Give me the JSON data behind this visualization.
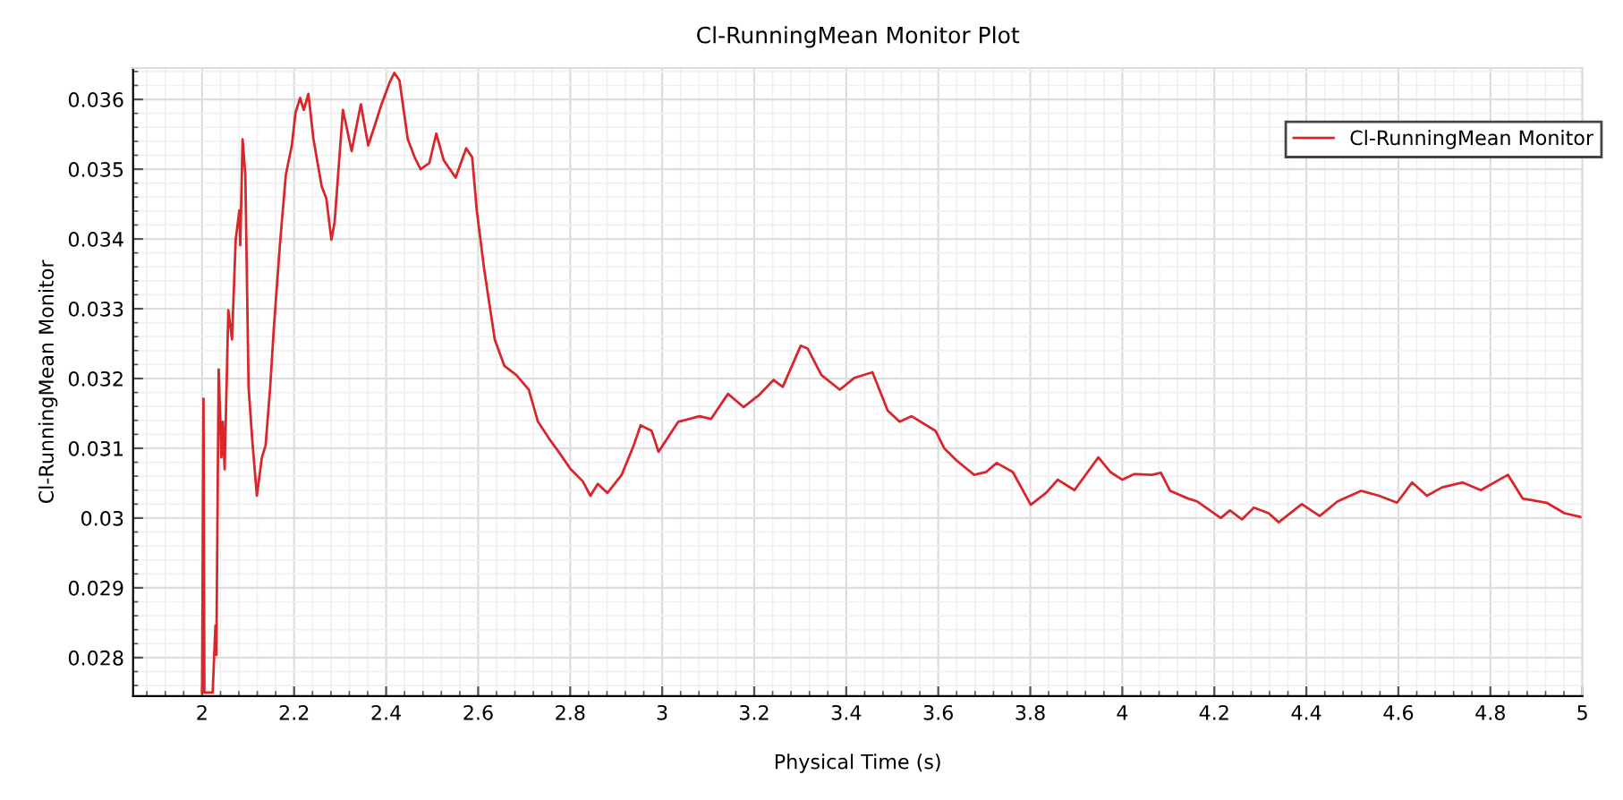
{
  "chart_data": {
    "type": "line",
    "title": "Cl-RunningMean Monitor Plot",
    "xlabel": "Physical Time (s)",
    "ylabel": "Cl-RunningMean Monitor",
    "xlim": [
      1.85,
      5
    ],
    "ylim": [
      0.02745,
      0.03645
    ],
    "xticks": [
      2,
      2.2,
      2.4,
      2.6,
      2.8,
      3,
      3.2,
      3.4,
      3.6,
      3.8,
      4,
      4.2,
      4.4,
      4.6,
      4.8,
      5
    ],
    "yticks": [
      0.028,
      0.029,
      0.03,
      0.031,
      0.032,
      0.033,
      0.034,
      0.035,
      0.036
    ],
    "grid": true,
    "legend": "top right",
    "marker": "none",
    "line_style": "solid",
    "series": [
      {
        "name": "Cl-RunningMean Monitor",
        "color": "#d9262b",
        "x": [
          2.0,
          2.003,
          2.005,
          2.023,
          2.029,
          2.031,
          2.036,
          2.042,
          2.045,
          2.049,
          2.057,
          2.065,
          2.073,
          2.081,
          2.083,
          2.088,
          2.094,
          2.101,
          2.109,
          2.119,
          2.13,
          2.138,
          2.148,
          2.156,
          2.169,
          2.182,
          2.195,
          2.203,
          2.213,
          2.221,
          2.231,
          2.242,
          2.26,
          2.27,
          2.281,
          2.288,
          2.306,
          2.325,
          2.345,
          2.361,
          2.374,
          2.39,
          2.408,
          2.418,
          2.429,
          2.447,
          2.462,
          2.475,
          2.494,
          2.509,
          2.525,
          2.551,
          2.574,
          2.587,
          2.597,
          2.613,
          2.636,
          2.657,
          2.683,
          2.71,
          2.73,
          2.756,
          2.775,
          2.801,
          2.827,
          2.844,
          2.86,
          2.881,
          2.912,
          2.938,
          2.953,
          2.977,
          2.992,
          3.035,
          3.081,
          3.106,
          3.143,
          3.177,
          3.21,
          3.242,
          3.262,
          3.301,
          3.316,
          3.346,
          3.386,
          3.418,
          3.457,
          3.49,
          3.516,
          3.542,
          3.594,
          3.613,
          3.639,
          3.678,
          3.704,
          3.727,
          3.762,
          3.801,
          3.834,
          3.86,
          3.896,
          3.948,
          3.974,
          4.0,
          4.026,
          4.065,
          4.084,
          4.104,
          4.143,
          4.162,
          4.214,
          4.234,
          4.26,
          4.286,
          4.318,
          4.34,
          4.39,
          4.429,
          4.468,
          4.519,
          4.558,
          4.597,
          4.63,
          4.662,
          4.695,
          4.74,
          4.779,
          4.838,
          4.87,
          4.922,
          4.961,
          5.0
        ],
        "values": [
          0.0275,
          0.03171,
          0.0275,
          0.0275,
          0.02846,
          0.02804,
          0.03213,
          0.03087,
          0.03138,
          0.0307,
          0.03298,
          0.03256,
          0.03399,
          0.03441,
          0.03391,
          0.03543,
          0.03492,
          0.03188,
          0.03112,
          0.03032,
          0.03087,
          0.03104,
          0.03188,
          0.03273,
          0.03391,
          0.03492,
          0.03534,
          0.03581,
          0.03602,
          0.03585,
          0.03608,
          0.03543,
          0.03475,
          0.03458,
          0.03399,
          0.03424,
          0.03585,
          0.03526,
          0.03593,
          0.03534,
          0.0356,
          0.03593,
          0.03625,
          0.03638,
          0.03627,
          0.03543,
          0.03517,
          0.035,
          0.03509,
          0.03551,
          0.03513,
          0.03488,
          0.0353,
          0.03517,
          0.03441,
          0.03357,
          0.03256,
          0.03218,
          0.03205,
          0.03184,
          0.03138,
          0.03112,
          0.03095,
          0.0307,
          0.03053,
          0.03032,
          0.03049,
          0.03036,
          0.03062,
          0.03104,
          0.03133,
          0.03125,
          0.03095,
          0.03138,
          0.03146,
          0.03142,
          0.03178,
          0.03159,
          0.03176,
          0.03198,
          0.03188,
          0.03247,
          0.03243,
          0.03205,
          0.03184,
          0.03201,
          0.03209,
          0.03154,
          0.03138,
          0.03146,
          0.03125,
          0.031,
          0.03083,
          0.03062,
          0.03066,
          0.03079,
          0.03066,
          0.03019,
          0.03036,
          0.03055,
          0.0304,
          0.03087,
          0.03066,
          0.03055,
          0.03063,
          0.03062,
          0.03065,
          0.03039,
          0.03028,
          0.03024,
          0.03,
          0.03011,
          0.02998,
          0.03015,
          0.03007,
          0.02994,
          0.0302,
          0.03003,
          0.03024,
          0.03039,
          0.03032,
          0.03022,
          0.03051,
          0.03032,
          0.03044,
          0.03051,
          0.0304,
          0.03062,
          0.03028,
          0.03022,
          0.03007,
          0.03001
        ]
      }
    ]
  }
}
